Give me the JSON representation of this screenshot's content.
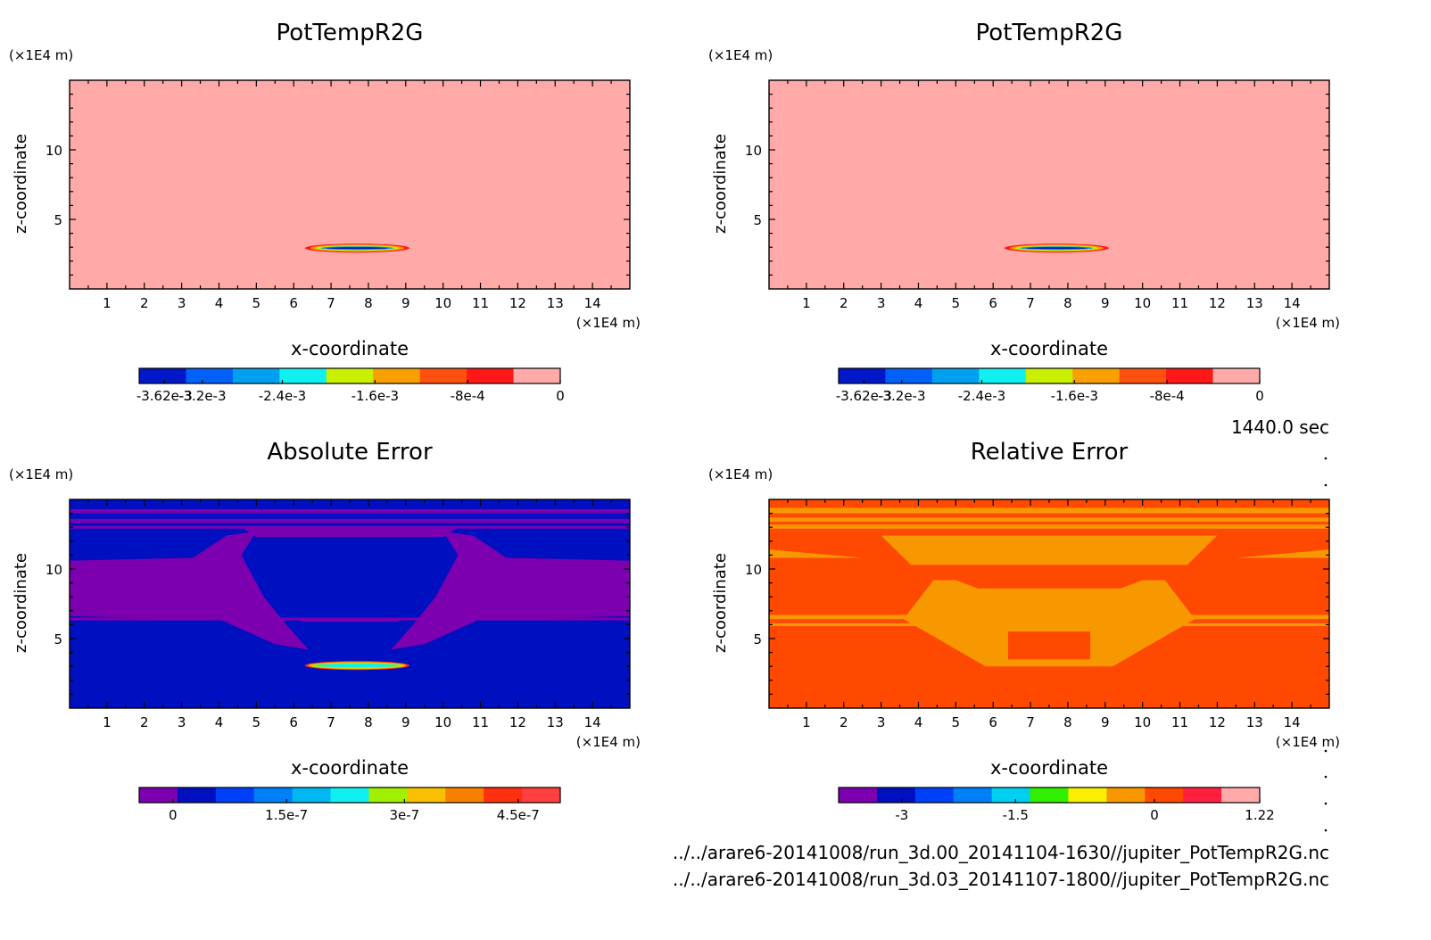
{
  "time_label": "1440.0 sec",
  "files": [
    "../../arare6-20141008/run_3d.00_20141104-1630//jupiter_PotTempR2G.nc",
    "../../arare6-20141008/run_3d.03_20141107-1800//jupiter_PotTempR2G.nc"
  ],
  "chart_data": [
    {
      "type": "heatmap",
      "title": "PotTempR2G",
      "xlabel": "x-coordinate",
      "ylabel": "z-coordinate",
      "x_unit": "(×1E4 m)",
      "y_unit": "(×1E4 m)",
      "xlim": [
        0,
        15
      ],
      "ylim": [
        0,
        15
      ],
      "xticks": [
        "1",
        "2",
        "3",
        "4",
        "5",
        "6",
        "7",
        "8",
        "9",
        "10",
        "11",
        "12",
        "13",
        "14"
      ],
      "yticks": [
        "5",
        "10"
      ],
      "background_color": "#ffa9a9",
      "colorbar": {
        "colors": [
          "#0018c8",
          "#0060f8",
          "#00a0f0",
          "#10f0f0",
          "#c8f000",
          "#f8a000",
          "#ff5010",
          "#ff1818",
          "#ffa9a9"
        ],
        "tick_labels": [
          "-3.62e-3",
          "-3.2e-3",
          "-2.4e-3",
          "-1.6e-3",
          "-8e-4",
          "0"
        ]
      },
      "features": [
        {
          "kind": "thin-band-anomaly",
          "x_range": [
            6.2,
            9.0
          ],
          "z": 3.0,
          "colors": [
            "#ff1818",
            "#f8a000",
            "#c8f000",
            "#00a0f0",
            "#0018c8"
          ]
        }
      ]
    },
    {
      "type": "heatmap",
      "title": "PotTempR2G",
      "xlabel": "x-coordinate",
      "ylabel": "z-coordinate",
      "x_unit": "(×1E4 m)",
      "y_unit": "(×1E4 m)",
      "xlim": [
        0,
        15
      ],
      "ylim": [
        0,
        15
      ],
      "xticks": [
        "1",
        "2",
        "3",
        "4",
        "5",
        "6",
        "7",
        "8",
        "9",
        "10",
        "11",
        "12",
        "13",
        "14"
      ],
      "yticks": [
        "5",
        "10"
      ],
      "background_color": "#ffa9a9",
      "colorbar": {
        "colors": [
          "#0018c8",
          "#0060f8",
          "#00a0f0",
          "#10f0f0",
          "#c8f000",
          "#f8a000",
          "#ff5010",
          "#ff1818",
          "#ffa9a9"
        ],
        "tick_labels": [
          "-3.62e-3",
          "-3.2e-3",
          "-2.4e-3",
          "-1.6e-3",
          "-8e-4",
          "0"
        ]
      },
      "features": [
        {
          "kind": "thin-band-anomaly",
          "x_range": [
            6.2,
            9.0
          ],
          "z": 3.0,
          "colors": [
            "#ff1818",
            "#f8a000",
            "#c8f000",
            "#00a0f0",
            "#0018c8"
          ]
        }
      ]
    },
    {
      "type": "heatmap",
      "title": "Absolute Error",
      "xlabel": "x-coordinate",
      "ylabel": "z-coordinate",
      "x_unit": "(×1E4 m)",
      "y_unit": "(×1E4 m)",
      "xlim": [
        0,
        15
      ],
      "ylim": [
        0,
        15
      ],
      "xticks": [
        "1",
        "2",
        "3",
        "4",
        "5",
        "6",
        "7",
        "8",
        "9",
        "10",
        "11",
        "12",
        "13",
        "14"
      ],
      "yticks": [
        "5",
        "10"
      ],
      "background_color": "#0010c0",
      "secondary_color": "#7c00b0",
      "colorbar": {
        "colors": [
          "#7c00b0",
          "#0010c0",
          "#0040f8",
          "#0080f8",
          "#00b8f0",
          "#10f0f0",
          "#a0f000",
          "#f8c000",
          "#f88000",
          "#ff3010",
          "#ff4040"
        ],
        "tick_labels": [
          "0",
          "1.5e-7",
          "3e-7",
          "4.5e-7"
        ]
      },
      "features": [
        {
          "kind": "thin-band-anomaly",
          "x_range": [
            6.2,
            9.0
          ],
          "z": 3.0,
          "colors": [
            "#ff3010",
            "#f8c000",
            "#a0f000",
            "#10f0f0"
          ]
        }
      ]
    },
    {
      "type": "heatmap",
      "title": "Relative Error",
      "xlabel": "x-coordinate",
      "ylabel": "z-coordinate",
      "x_unit": "(×1E4 m)",
      "y_unit": "(×1E4 m)",
      "xlim": [
        0,
        15
      ],
      "ylim": [
        0,
        15
      ],
      "xticks": [
        "1",
        "2",
        "3",
        "4",
        "5",
        "6",
        "7",
        "8",
        "9",
        "10",
        "11",
        "12",
        "13",
        "14"
      ],
      "yticks": [
        "5",
        "10"
      ],
      "background_color": "#ff4800",
      "secondary_color": "#f89800",
      "colorbar": {
        "colors": [
          "#7c00b0",
          "#0010c0",
          "#0040f8",
          "#0080f8",
          "#00d0f0",
          "#30f000",
          "#f8f000",
          "#f89800",
          "#ff4800",
          "#ff2040",
          "#ffa9a9"
        ],
        "tick_labels": [
          "-3",
          "-1.5",
          "0",
          "1.22"
        ]
      },
      "features": []
    }
  ]
}
